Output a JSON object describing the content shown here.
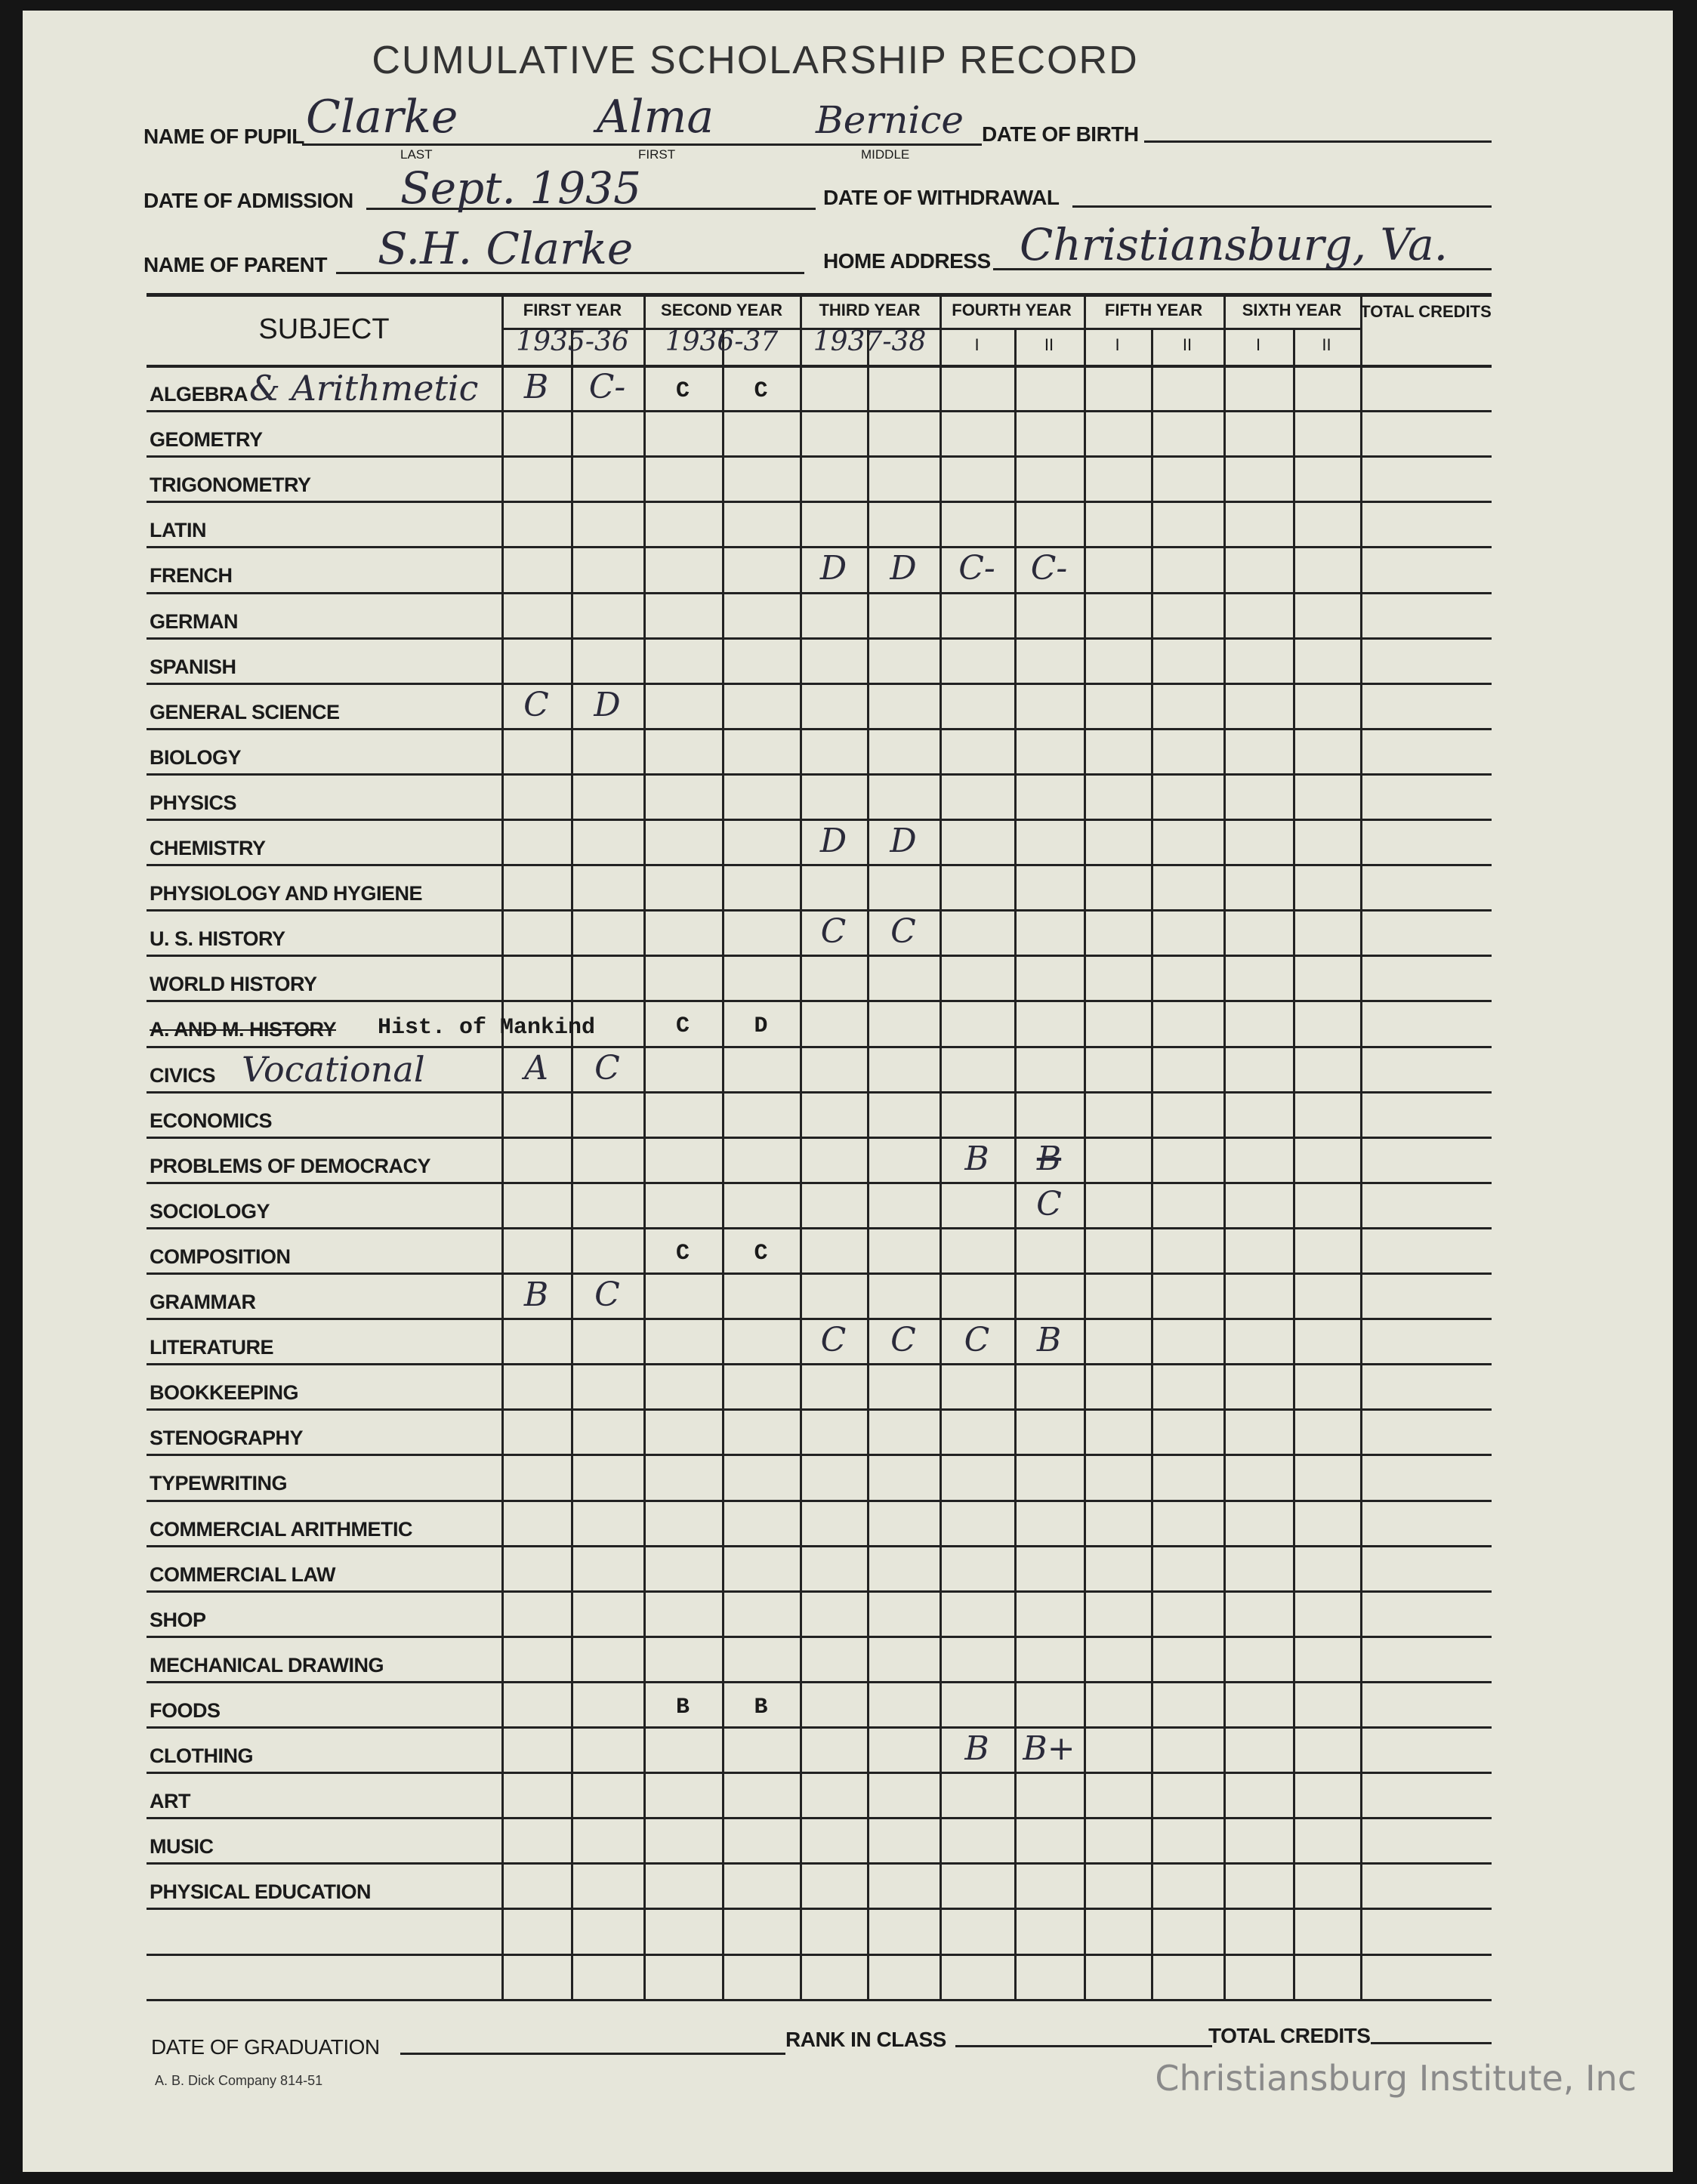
{
  "title": "CUMULATIVE SCHOLARSHIP RECORD",
  "header": {
    "name_label": "NAME OF PUPIL",
    "last_label": "LAST",
    "first_label": "FIRST",
    "middle_label": "MIDDLE",
    "last": "Clarke",
    "first": "Alma",
    "middle": "Bernice",
    "dob_label": "DATE OF BIRTH",
    "admission_label": "DATE OF ADMISSION",
    "admission": "Sept. 1935",
    "withdrawal_label": "DATE OF WITHDRAWAL",
    "parent_label": "NAME OF PARENT",
    "parent": "S.H. Clarke",
    "address_label": "HOME ADDRESS",
    "address": "Christiansburg, Va."
  },
  "table": {
    "subject_header": "SUBJECT",
    "total_header": "TOTAL CREDITS",
    "years": [
      {
        "label": "FIRST YEAR",
        "sub": [
          "1935-36"
        ]
      },
      {
        "label": "SECOND YEAR",
        "sub": [
          "1936-37"
        ]
      },
      {
        "label": "THIRD YEAR",
        "sub": [
          "1937-38"
        ]
      },
      {
        "label": "FOURTH YEAR",
        "sub": [
          "I",
          "II"
        ]
      },
      {
        "label": "FIFTH YEAR",
        "sub": [
          "I",
          "II"
        ]
      },
      {
        "label": "SIXTH YEAR",
        "sub": [
          "I",
          "II"
        ]
      }
    ],
    "rows": [
      {
        "subject": "ALGEBRA",
        "note": "& Arithmetic",
        "grades": [
          [
            "B",
            0
          ],
          [
            "C-",
            1
          ],
          [
            "C",
            2,
            "typed"
          ],
          [
            "C",
            3,
            "typed"
          ]
        ]
      },
      {
        "subject": "GEOMETRY",
        "grades": []
      },
      {
        "subject": "TRIGONOMETRY",
        "grades": []
      },
      {
        "subject": "LATIN",
        "grades": []
      },
      {
        "subject": "FRENCH",
        "grades": [
          [
            "D",
            4
          ],
          [
            "D",
            5
          ],
          [
            "C-",
            6
          ],
          [
            "C-",
            7
          ]
        ]
      },
      {
        "subject": "GERMAN",
        "grades": []
      },
      {
        "subject": "SPANISH",
        "grades": []
      },
      {
        "subject": "GENERAL SCIENCE",
        "grades": [
          [
            "C",
            0
          ],
          [
            "D",
            1
          ]
        ]
      },
      {
        "subject": "BIOLOGY",
        "grades": []
      },
      {
        "subject": "PHYSICS",
        "grades": []
      },
      {
        "subject": "CHEMISTRY",
        "grades": [
          [
            "D",
            4
          ],
          [
            "D",
            5
          ]
        ]
      },
      {
        "subject": "PHYSIOLOGY AND HYGIENE",
        "grades": []
      },
      {
        "subject": "U. S. HISTORY",
        "grades": [
          [
            "C",
            4
          ],
          [
            "C",
            5
          ]
        ]
      },
      {
        "subject": "WORLD HISTORY",
        "grades": []
      },
      {
        "subject": "A. AND M. HISTORY",
        "struck": true,
        "note": "Hist. of Mankind",
        "note_typed": true,
        "grades": [
          [
            "C",
            2,
            "typed"
          ],
          [
            "D",
            3,
            "typed"
          ]
        ]
      },
      {
        "subject": "CIVICS",
        "note": "Vocational",
        "grades": [
          [
            "A",
            0
          ],
          [
            "C",
            1
          ]
        ]
      },
      {
        "subject": "ECONOMICS",
        "grades": []
      },
      {
        "subject": "PROBLEMS OF DEMOCRACY",
        "grades": [
          [
            "B",
            6
          ],
          [
            "B",
            7,
            "struck"
          ]
        ]
      },
      {
        "subject": "SOCIOLOGY",
        "grades": [
          [
            "C",
            7
          ]
        ]
      },
      {
        "subject": "COMPOSITION",
        "grades": [
          [
            "C",
            2,
            "typed"
          ],
          [
            "C",
            3,
            "typed"
          ]
        ]
      },
      {
        "subject": "GRAMMAR",
        "grades": [
          [
            "B",
            0
          ],
          [
            "C",
            1
          ]
        ]
      },
      {
        "subject": "LITERATURE",
        "grades": [
          [
            "C",
            4
          ],
          [
            "C",
            5
          ],
          [
            "C",
            6
          ],
          [
            "B",
            7
          ]
        ]
      },
      {
        "subject": "BOOKKEEPING",
        "grades": []
      },
      {
        "subject": "STENOGRAPHY",
        "grades": []
      },
      {
        "subject": "TYPEWRITING",
        "grades": []
      },
      {
        "subject": "COMMERCIAL ARITHMETIC",
        "grades": []
      },
      {
        "subject": "COMMERCIAL LAW",
        "grades": []
      },
      {
        "subject": "SHOP",
        "grades": []
      },
      {
        "subject": "MECHANICAL DRAWING",
        "grades": []
      },
      {
        "subject": "FOODS",
        "grades": [
          [
            "B",
            2,
            "typed"
          ],
          [
            "B",
            3,
            "typed"
          ]
        ]
      },
      {
        "subject": "CLOTHING",
        "grades": [
          [
            "B",
            6
          ],
          [
            "B+",
            7
          ]
        ]
      },
      {
        "subject": "ART",
        "grades": []
      },
      {
        "subject": "MUSIC",
        "grades": []
      },
      {
        "subject": "PHYSICAL EDUCATION",
        "grades": []
      },
      {
        "subject": "",
        "grades": []
      },
      {
        "subject": "",
        "grades": []
      }
    ]
  },
  "footer": {
    "graduation_label": "DATE OF GRADUATION",
    "rank_label": "RANK IN CLASS",
    "credits_label": "TOTAL CREDITS",
    "printer": "A. B. Dick Company 814-51"
  },
  "watermark": "Christiansburg Institute, Inc"
}
